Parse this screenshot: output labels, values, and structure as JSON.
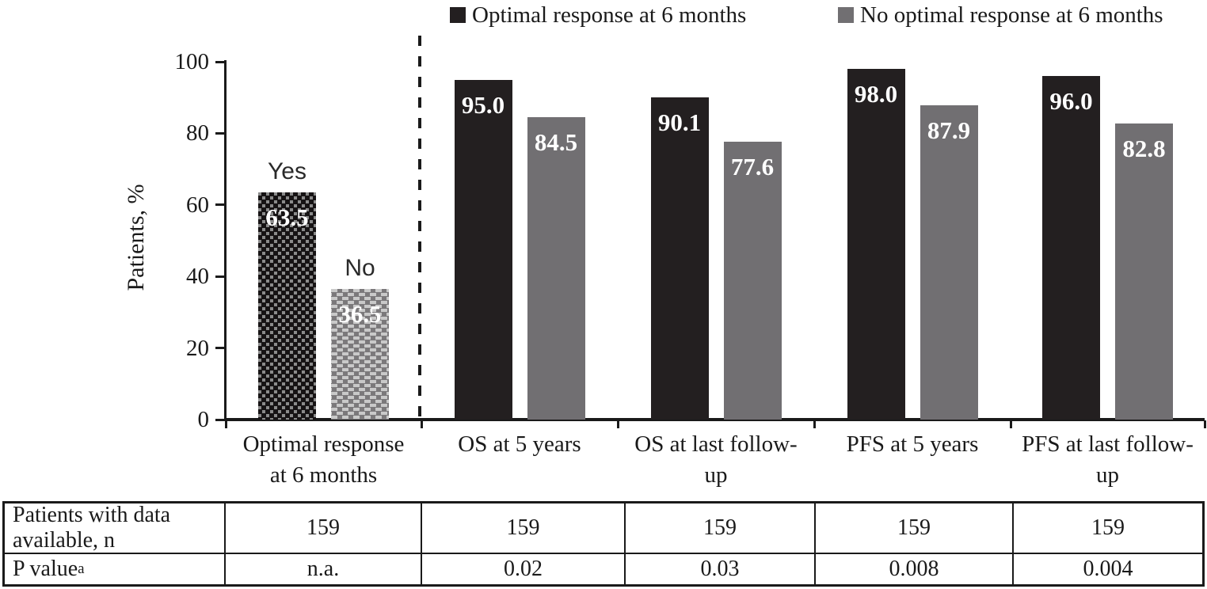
{
  "legend": {
    "items": [
      {
        "label": "Optimal response at 6 months",
        "swatch_color": "#231f20",
        "swatch": "black-square-icon"
      },
      {
        "label": "No optimal response at 6 months",
        "swatch_color": "#716f72",
        "swatch": "gray-square-icon"
      }
    ]
  },
  "chart_data": {
    "type": "bar",
    "title": "",
    "xlabel": "",
    "ylabel": "Patients, %",
    "ylim": [
      0,
      100
    ],
    "grid": false,
    "legend_position": "top",
    "y_ticks": [
      "0",
      "20",
      "40",
      "60",
      "80",
      "100"
    ],
    "y_tick_values": [
      0,
      20,
      40,
      60,
      80,
      100
    ],
    "categories": [
      "Optimal response at 6 months",
      "OS at 5 years",
      "OS at last follow-up",
      "PFS at 5 years",
      "PFS at last follow-up"
    ],
    "category_label_lines": [
      [
        "Optimal response",
        "at 6 months"
      ],
      [
        "OS at 5 years"
      ],
      [
        "OS at last follow-",
        "up"
      ],
      [
        "PFS at 5 years"
      ],
      [
        "PFS at last follow-",
        "up"
      ]
    ],
    "series": [
      {
        "name": "Optimal response at 6 months",
        "color": "#231f20",
        "values": [
          63.5,
          95.0,
          90.1,
          98.0,
          96.0
        ],
        "labels": [
          "63.5",
          "95.0",
          "90.1",
          "98.0",
          "96.0"
        ]
      },
      {
        "name": "No optimal response at 6 months",
        "color": "#716f72",
        "values": [
          36.5,
          84.5,
          77.6,
          87.9,
          82.8
        ],
        "labels": [
          "36.5",
          "84.5",
          "77.6",
          "87.9",
          "82.8"
        ]
      }
    ],
    "first_group_bar_annotations": [
      "Yes",
      "No"
    ],
    "first_group_patterns": [
      "checkerboard",
      "dashes"
    ],
    "separator_after_first_category": "vertical dashed line"
  },
  "table": {
    "row_labels": [
      {
        "text": "Patients with data available, n",
        "sup": ""
      },
      {
        "text": "P value",
        "sup": "a"
      }
    ],
    "rows": [
      [
        "159",
        "159",
        "159",
        "159",
        "159"
      ],
      [
        "n.a.",
        "0.02",
        "0.03",
        "0.008",
        "0.004"
      ]
    ]
  }
}
